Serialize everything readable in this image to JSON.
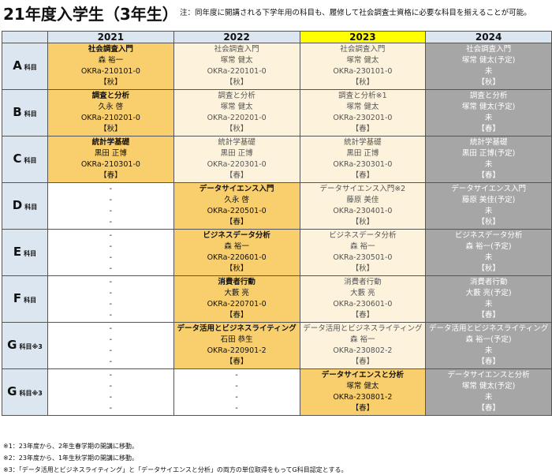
{
  "title": "21年度入学生（3年生）",
  "note": "注：同年度に開講される下学年用の科目も、履修して社会調査士資格に必要な科目を揃えることが可能。",
  "years": [
    "2021",
    "2022",
    "2023",
    "2024"
  ],
  "rows": [
    {
      "letter": "A",
      "suffix": "科目",
      "cells": [
        {
          "style": "orange",
          "bold": true,
          "lines": [
            "社会調査入門",
            "森 裕一",
            "OKRa-210101-0",
            "【秋】"
          ]
        },
        {
          "style": "cream",
          "bold": false,
          "lines": [
            "社会調査入門",
            "塚常 健太",
            "OKRa-220101-0",
            "【秋】"
          ]
        },
        {
          "style": "cream",
          "bold": false,
          "lines": [
            "社会調査入門",
            "塚常 健太",
            "OKRa-230101-0",
            "【秋】"
          ]
        },
        {
          "style": "grey",
          "bold": false,
          "lines": [
            "社会調査入門",
            "塚常 健太(予定)",
            "未",
            "【秋】"
          ]
        }
      ]
    },
    {
      "letter": "B",
      "suffix": "科目",
      "cells": [
        {
          "style": "orange",
          "bold": true,
          "lines": [
            "調査と分析",
            "久永 啓",
            "OKRa-210201-0",
            "【秋】"
          ]
        },
        {
          "style": "cream",
          "bold": false,
          "lines": [
            "調査と分析",
            "塚常 健太",
            "OKRa-220201-0",
            "【秋】"
          ]
        },
        {
          "style": "cream",
          "bold": false,
          "lines": [
            "調査と分析※1",
            "塚常 健太",
            "OKRa-230201-0",
            "【春】"
          ]
        },
        {
          "style": "grey",
          "bold": false,
          "lines": [
            "調査と分析",
            "塚常 健太(予定)",
            "未",
            "【春】"
          ]
        }
      ]
    },
    {
      "letter": "C",
      "suffix": "科目",
      "cells": [
        {
          "style": "orange",
          "bold": true,
          "lines": [
            "統計学基礎",
            "黒田 正博",
            "OKRa-210301-0",
            "【春】"
          ]
        },
        {
          "style": "cream",
          "bold": false,
          "lines": [
            "統計学基礎",
            "黒田 正博",
            "OKRa-220301-0",
            "【春】"
          ]
        },
        {
          "style": "cream",
          "bold": false,
          "lines": [
            "統計学基礎",
            "黒田 正博",
            "OKRa-230301-0",
            "【春】"
          ]
        },
        {
          "style": "grey",
          "bold": false,
          "lines": [
            "統計学基礎",
            "黒田 正博(予定)",
            "未",
            "【春】"
          ]
        }
      ]
    },
    {
      "letter": "D",
      "suffix": "科目",
      "cells": [
        {
          "style": "white",
          "bold": false,
          "lines": [
            "-",
            "-",
            "-",
            "-"
          ]
        },
        {
          "style": "orange",
          "bold": true,
          "lines": [
            "データサイエンス入門",
            "久永 啓",
            "OKRa-220501-0",
            "【春】"
          ]
        },
        {
          "style": "cream",
          "bold": false,
          "lines": [
            "データサイエンス入門※2",
            "藤原 美佳",
            "OKRa-230401-0",
            "【秋】"
          ]
        },
        {
          "style": "grey",
          "bold": false,
          "lines": [
            "データサイエンス入門",
            "藤原 美佳(予定)",
            "未",
            "【秋】"
          ]
        }
      ]
    },
    {
      "letter": "E",
      "suffix": "科目",
      "cells": [
        {
          "style": "white",
          "bold": false,
          "lines": [
            "-",
            "-",
            "-",
            "-"
          ]
        },
        {
          "style": "orange",
          "bold": true,
          "lines": [
            "ビジネスデータ分析",
            "森 裕一",
            "OKRa-220601-0",
            "【秋】"
          ]
        },
        {
          "style": "cream",
          "bold": false,
          "lines": [
            "ビジネスデータ分析",
            "森 裕一",
            "OKRa-230501-0",
            "【秋】"
          ]
        },
        {
          "style": "grey",
          "bold": false,
          "lines": [
            "ビジネスデータ分析",
            "森 裕一(予定)",
            "未",
            "【秋】"
          ]
        }
      ]
    },
    {
      "letter": "F",
      "suffix": "科目",
      "cells": [
        {
          "style": "white",
          "bold": false,
          "lines": [
            "-",
            "-",
            "-",
            "-"
          ]
        },
        {
          "style": "orange",
          "bold": true,
          "lines": [
            "消費者行動",
            "大藪 亮",
            "OKRa-220701-0",
            "【春】"
          ]
        },
        {
          "style": "cream",
          "bold": false,
          "lines": [
            "消費者行動",
            "大藪 亮",
            "OKRa-230601-0",
            "【春】"
          ]
        },
        {
          "style": "grey",
          "bold": false,
          "lines": [
            "消費者行動",
            "大藪 亮(予定)",
            "未",
            "【春】"
          ]
        }
      ]
    },
    {
      "letter": "G",
      "suffix": "科目※3",
      "cells": [
        {
          "style": "white",
          "bold": false,
          "lines": [
            "-",
            "-",
            "-",
            "-"
          ]
        },
        {
          "style": "orange",
          "bold": true,
          "lines": [
            "データ活用とビジネスライティング",
            "石田 恭生",
            "OKRa-220901-2",
            "【春】"
          ]
        },
        {
          "style": "cream",
          "bold": false,
          "lines": [
            "データ活用とビジネスライティング",
            "森 裕一",
            "OKRa-230802-2",
            "【春】"
          ]
        },
        {
          "style": "grey",
          "bold": false,
          "lines": [
            "データ活用とビジネスライティング",
            "森 裕一(予定)",
            "未",
            "【春】"
          ]
        }
      ]
    },
    {
      "letter": "G",
      "suffix": "科目※3",
      "cells": [
        {
          "style": "white",
          "bold": false,
          "lines": [
            "-",
            "-",
            "-",
            "-"
          ]
        },
        {
          "style": "white",
          "bold": false,
          "lines": [
            "-",
            "-",
            "-",
            "-"
          ]
        },
        {
          "style": "orange",
          "bold": true,
          "lines": [
            "データサイエンスと分析",
            "塚常 健太",
            "OKRa-230801-2",
            "【春】"
          ]
        },
        {
          "style": "grey",
          "bold": false,
          "lines": [
            "データサイエンスと分析",
            "塚常 健太(予定)",
            "未",
            "【春】"
          ]
        }
      ]
    }
  ],
  "footnotes": [
    "※1：23年度から、2年生春学期の開講に移動。",
    "※2：23年度から、1年生秋学期の開講に移動。",
    "※3：「データ活用とビジネスライティング」と「データサイエンスと分析」の両方の単位取得をもってG科目認定とする。"
  ],
  "colors": {
    "header": "#dce6f0",
    "highlight_year": "#ffff00",
    "taken": "#f9cf6d",
    "available": "#fdf3dc",
    "planned": "#a6a6a6"
  }
}
